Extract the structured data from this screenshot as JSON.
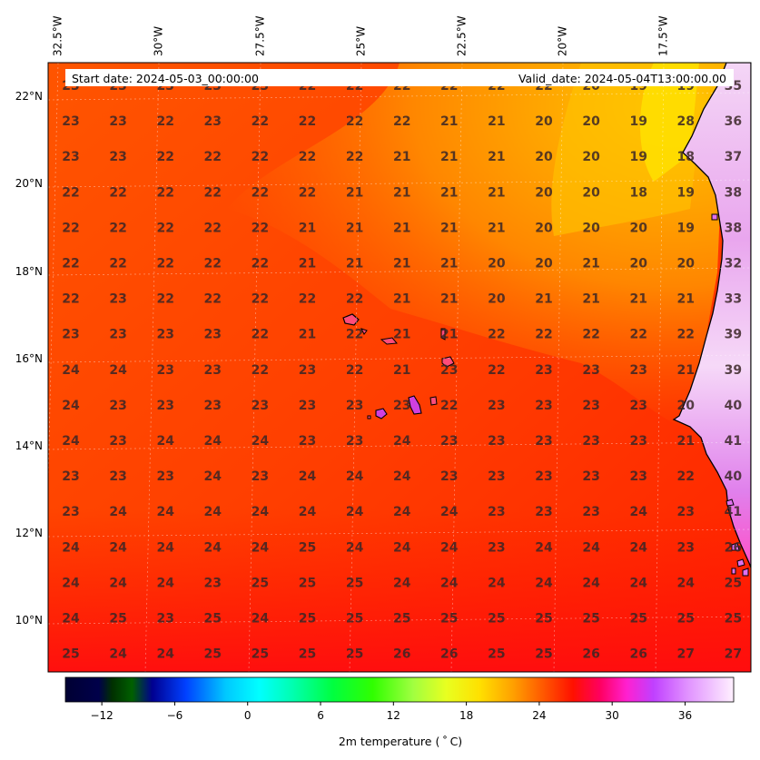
{
  "header": {
    "start_date": "Start date: 2024-05-03_00:00:00",
    "valid_date": "Valid_date: 2024-05-04T13:00:00.00"
  },
  "longitude_labels": [
    "32.5°W",
    "30°W",
    "27.5°W",
    "25°W",
    "22.5°W",
    "20°W",
    "17.5°W"
  ],
  "latitude_labels": [
    "22°N",
    "20°N",
    "18°N",
    "16°N",
    "14°N",
    "12°N",
    "10°N"
  ],
  "temperature_grid": [
    [
      "23",
      "23",
      "23",
      "23",
      "23",
      "22",
      "22",
      "22",
      "22",
      "22",
      "22",
      "20",
      "19",
      "19",
      "35"
    ],
    [
      "23",
      "23",
      "22",
      "23",
      "22",
      "22",
      "22",
      "22",
      "21",
      "21",
      "20",
      "20",
      "19",
      "28",
      "36"
    ],
    [
      "23",
      "23",
      "22",
      "22",
      "22",
      "22",
      "22",
      "21",
      "21",
      "21",
      "20",
      "20",
      "19",
      "18",
      "37"
    ],
    [
      "22",
      "22",
      "22",
      "22",
      "22",
      "22",
      "21",
      "21",
      "21",
      "21",
      "20",
      "20",
      "18",
      "19",
      "38"
    ],
    [
      "22",
      "22",
      "22",
      "22",
      "22",
      "21",
      "21",
      "21",
      "21",
      "21",
      "20",
      "20",
      "20",
      "19",
      "38"
    ],
    [
      "22",
      "22",
      "22",
      "22",
      "22",
      "21",
      "21",
      "21",
      "21",
      "20",
      "20",
      "21",
      "20",
      "20",
      "32"
    ],
    [
      "22",
      "23",
      "22",
      "22",
      "22",
      "22",
      "22",
      "21",
      "21",
      "20",
      "21",
      "21",
      "21",
      "21",
      "33"
    ],
    [
      "23",
      "23",
      "23",
      "23",
      "22",
      "21",
      "22",
      "21",
      "21",
      "22",
      "22",
      "22",
      "22",
      "22",
      "39"
    ],
    [
      "24",
      "24",
      "23",
      "23",
      "22",
      "23",
      "22",
      "21",
      "23",
      "22",
      "23",
      "23",
      "23",
      "21",
      "39"
    ],
    [
      "24",
      "23",
      "23",
      "23",
      "23",
      "23",
      "23",
      "23",
      "22",
      "23",
      "23",
      "23",
      "23",
      "20",
      "40"
    ],
    [
      "24",
      "23",
      "24",
      "24",
      "24",
      "23",
      "23",
      "24",
      "23",
      "23",
      "23",
      "23",
      "23",
      "21",
      "41"
    ],
    [
      "23",
      "23",
      "23",
      "24",
      "23",
      "24",
      "24",
      "24",
      "23",
      "23",
      "23",
      "23",
      "23",
      "22",
      "40"
    ],
    [
      "23",
      "24",
      "24",
      "24",
      "24",
      "24",
      "24",
      "24",
      "24",
      "23",
      "23",
      "23",
      "24",
      "23",
      "41"
    ],
    [
      "24",
      "24",
      "24",
      "24",
      "24",
      "25",
      "24",
      "24",
      "24",
      "23",
      "24",
      "24",
      "24",
      "23",
      "26"
    ],
    [
      "24",
      "24",
      "24",
      "23",
      "25",
      "25",
      "25",
      "24",
      "24",
      "24",
      "24",
      "24",
      "24",
      "24",
      "25"
    ],
    [
      "24",
      "25",
      "23",
      "25",
      "24",
      "25",
      "25",
      "25",
      "25",
      "25",
      "25",
      "25",
      "25",
      "25",
      "25"
    ],
    [
      "25",
      "24",
      "24",
      "25",
      "25",
      "25",
      "25",
      "26",
      "26",
      "25",
      "25",
      "26",
      "26",
      "27",
      "27"
    ]
  ],
  "colorbar": {
    "label": "2m temperature ($^\\circ$C)",
    "label_display": "2m temperature ( ˚ C)",
    "ticks": [
      "−12",
      "−6",
      "0",
      "6",
      "12",
      "18",
      "24",
      "30",
      "36"
    ],
    "tick_values": [
      -12,
      -6,
      0,
      6,
      12,
      18,
      24,
      30,
      36
    ],
    "range": [
      -15,
      40
    ]
  },
  "colors": {
    "ocean_base": "#ff3a00",
    "warm_plume": "#ffa800",
    "coast_line": "#000000"
  }
}
